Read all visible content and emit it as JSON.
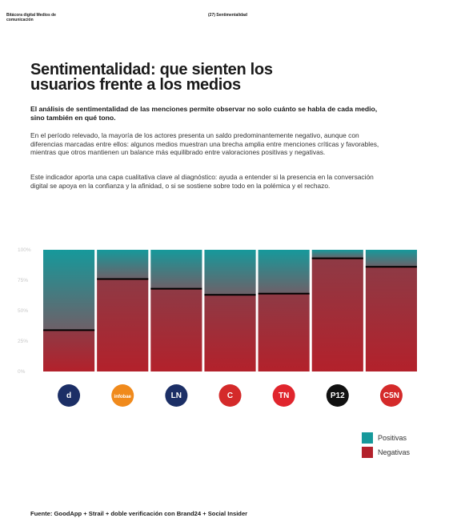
{
  "header": {
    "left": "Bitácora digital Medios de comunicación",
    "right": "(27) Sentimentalidad"
  },
  "title": "Sentimentalidad: que sienten los usuarios frente a los medios",
  "intro": "El análisis de sentimentalidad de las menciones permite observar no solo cuánto se habla de cada medio, sino también en qué tono.",
  "paragraphs": [
    "En el período relevado, la mayoría de los actores presenta un saldo predominantemente negativo, aunque con diferencias marcadas entre ellos: algunos medios muestran una brecha amplia entre menciones críticas y favorables, mientras que otros mantienen un balance más equilibrado entre valoraciones positivas y negativas.",
    "Este indicador aporta una capa cualitativa clave al diagnóstico: ayuda a entender si la presencia en la conversación digital se apoya en la confianza y la afinidad, o si se sostiene sobre todo en la polémica y el rechazo."
  ],
  "source": "Fuente: GoodApp + Strail + doble verificación con Brand24 + Social Insider",
  "chart_data": {
    "type": "stacked_bar",
    "categories": [
      "d",
      "infobae",
      "LN",
      "C",
      "TN",
      "P12",
      "C5N"
    ],
    "series": [
      {
        "name": "Negativas",
        "color": "#b3212b",
        "values": [
          34,
          76,
          68,
          63,
          64,
          93,
          86
        ]
      },
      {
        "name": "Positivas",
        "color": "#16999b",
        "values": [
          66,
          24,
          32,
          37,
          36,
          7,
          14
        ]
      }
    ],
    "ylim": [
      0,
      100
    ],
    "yticks": [
      {
        "value": 0,
        "label": "0%"
      },
      {
        "value": 25,
        "label": "25%"
      },
      {
        "value": 50,
        "label": "50%"
      },
      {
        "value": 75,
        "label": "75%"
      },
      {
        "value": 100,
        "label": "100%"
      }
    ],
    "logo_colors": [
      "#1c2f66",
      "#f08a1c",
      "#1c2f66",
      "#d42a2a",
      "#e0252d",
      "#111111",
      "#d42a2a"
    ],
    "legend": "bottom-right"
  }
}
